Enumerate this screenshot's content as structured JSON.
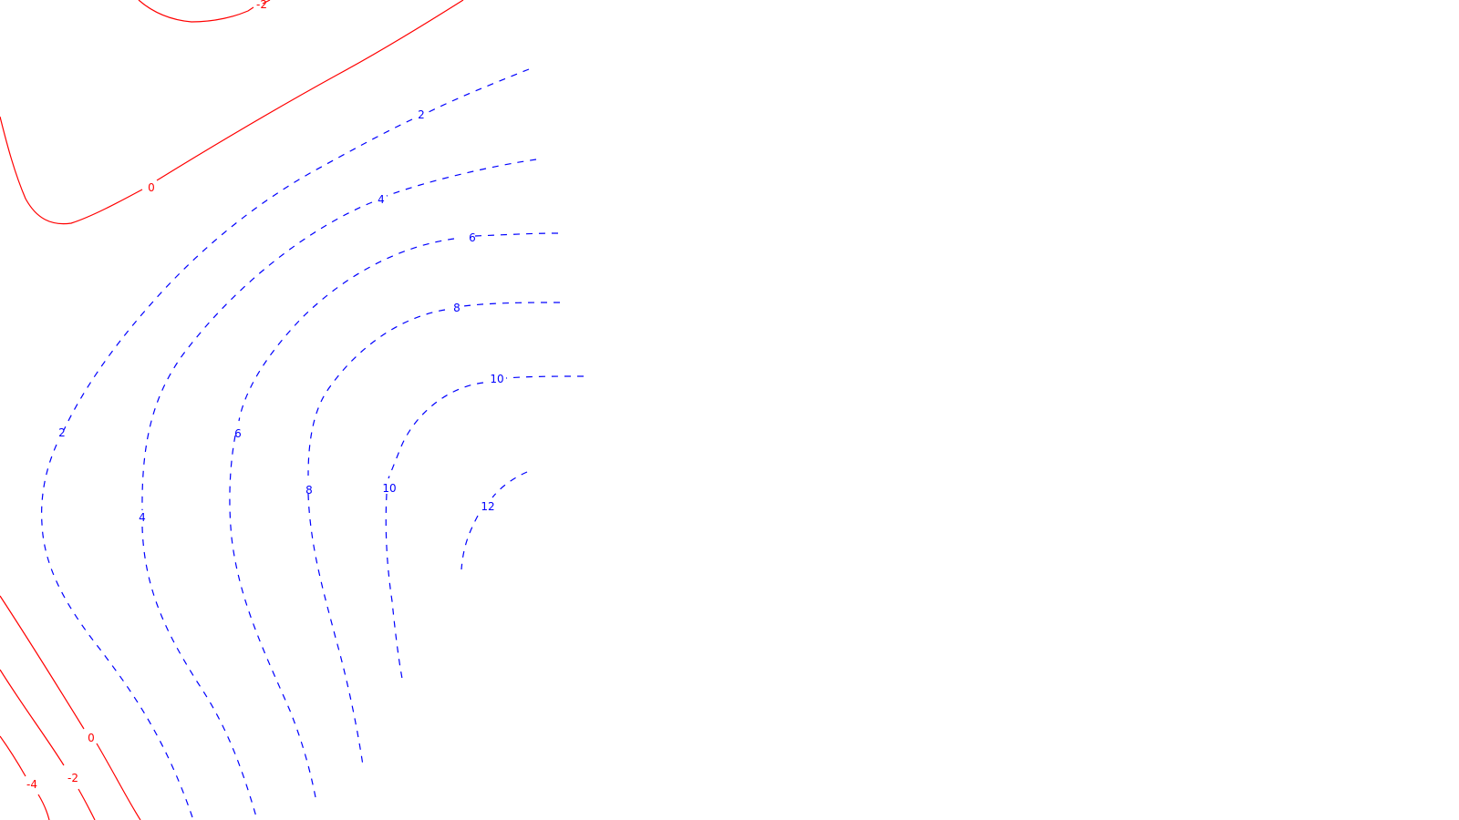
{
  "chart_data": {
    "type": "contour",
    "title": "",
    "xlabel": "",
    "ylabel": "",
    "grid": false,
    "legend": "none",
    "colors": {
      "negative_and_zero": "#ff0000",
      "positive": "#0000ff"
    },
    "line_styles": {
      "negative_and_zero": "solid",
      "positive": "dashed"
    },
    "levels": [
      -4,
      -2,
      0,
      2,
      4,
      6,
      8,
      10,
      12
    ],
    "contour_labels": [
      {
        "text": "-2",
        "level": -2
      },
      {
        "text": "0",
        "level": 0
      },
      {
        "text": "2",
        "level": 2
      },
      {
        "text": "4",
        "level": 4
      },
      {
        "text": "6",
        "level": 6
      },
      {
        "text": "8",
        "level": 8
      },
      {
        "text": "10",
        "level": 10
      },
      {
        "text": "2",
        "level": 2
      },
      {
        "text": "6",
        "level": 6
      },
      {
        "text": "4",
        "level": 4
      },
      {
        "text": "8",
        "level": 8
      },
      {
        "text": "10",
        "level": 10
      },
      {
        "text": "12",
        "level": 12
      },
      {
        "text": "0",
        "level": 0
      },
      {
        "text": "-2",
        "level": -2
      },
      {
        "text": "-4",
        "level": -4
      }
    ]
  }
}
